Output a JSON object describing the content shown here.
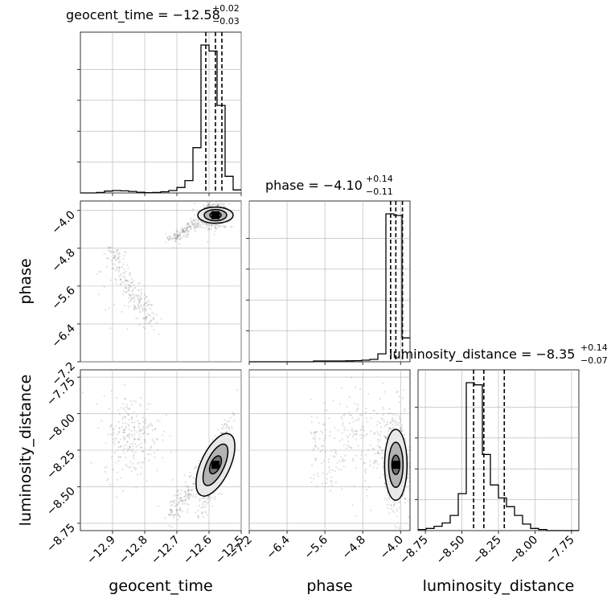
{
  "chart_data": {
    "type": "corner",
    "title": "",
    "parameters": [
      "geocent_time",
      "phase",
      "luminosity_distance"
    ],
    "ranges": {
      "geocent_time": [
        -13.0,
        -12.5
      ],
      "phase": [
        -7.2,
        -3.8
      ],
      "luminosity_distance": [
        -8.8,
        -7.7
      ]
    },
    "ticks": {
      "geocent_time": [
        -12.9,
        -12.8,
        -12.7,
        -12.6,
        -12.5
      ],
      "phase": [
        -7.2,
        -6.4,
        -5.6,
        -4.8,
        -4.0
      ],
      "luminosity_distance": [
        -8.75,
        -8.5,
        -8.25,
        -8.0,
        -7.75
      ]
    },
    "tick_labels": {
      "geocent_time": [
        "−12.9",
        "−12.8",
        "−12.7",
        "−12.6",
        "−12.5"
      ],
      "phase": [
        "−7.2",
        "−6.4",
        "−5.6",
        "−4.8",
        "−4.0"
      ],
      "luminosity_distance": [
        "−8.75",
        "−8.50",
        "−8.25",
        "−8.00",
        "−7.75"
      ]
    },
    "titles": {
      "geocent_time": {
        "prefix": "geocent_time = −12.58",
        "sup": "+0.02",
        "sub": "−0.03"
      },
      "phase": {
        "prefix": "phase = −4.10",
        "sup": "+0.14",
        "sub": "−0.11"
      },
      "luminosity_distance": {
        "prefix": "luminosity_distance = −8.35",
        "sup": "+0.14",
        "sub": "−0.07"
      }
    },
    "quantiles": {
      "geocent_time": [
        -12.61,
        -12.58,
        -12.56
      ],
      "phase": [
        -4.21,
        -4.1,
        -3.96
      ],
      "luminosity_distance": [
        -8.42,
        -8.35,
        -8.21
      ]
    },
    "histograms": {
      "geocent_time": {
        "edges": [
          -13.0,
          -12.975,
          -12.95,
          -12.925,
          -12.9,
          -12.875,
          -12.85,
          -12.825,
          -12.8,
          -12.775,
          -12.75,
          -12.725,
          -12.7,
          -12.675,
          -12.65,
          -12.625,
          -12.6,
          -12.575,
          -12.55,
          -12.525,
          -12.5
        ],
        "counts": [
          0,
          0,
          0.3,
          1.2,
          1.6,
          1.4,
          1.0,
          0.5,
          0.2,
          0.3,
          0.8,
          1.6,
          3.6,
          8.2,
          30,
          98,
          94,
          58,
          11,
          2
        ]
      },
      "phase": {
        "edges": [
          -7.2,
          -7.03,
          -6.86,
          -6.69,
          -6.52,
          -6.35,
          -6.18,
          -6.01,
          -5.84,
          -5.67,
          -5.5,
          -5.33,
          -5.16,
          -4.99,
          -4.82,
          -4.65,
          -4.48,
          -4.31,
          -4.14,
          -3.97,
          -3.8
        ],
        "counts": [
          0,
          0,
          0,
          0,
          0,
          0,
          0,
          0,
          0.5,
          0.5,
          0.5,
          0.5,
          0.6,
          0.7,
          1.0,
          1.5,
          5,
          93,
          92,
          15
        ]
      },
      "luminosity_distance": {
        "edges": [
          -8.8,
          -8.745,
          -8.69,
          -8.635,
          -8.58,
          -8.525,
          -8.47,
          -8.415,
          -8.36,
          -8.305,
          -8.25,
          -8.195,
          -8.14,
          -8.085,
          -8.03,
          -7.975,
          -7.92,
          -7.865,
          -7.81,
          -7.755,
          -7.7
        ],
        "counts": [
          0.5,
          1,
          2,
          3.5,
          7,
          17,
          68,
          67,
          35,
          21,
          15,
          11,
          7,
          3,
          1,
          0.5,
          0,
          0,
          0,
          0
        ]
      }
    }
  }
}
